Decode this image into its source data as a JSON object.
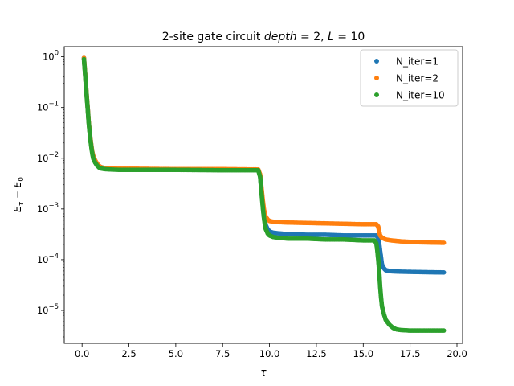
{
  "chart_data": {
    "type": "scatter",
    "title": "2-site gate circuit $depth=2, L=10$",
    "title_parts": {
      "prefix": "2-site gate circuit ",
      "depth_var": "depth",
      "eq1": " = 2, ",
      "L_var": "L",
      "eq2": " = 10"
    },
    "xlabel": "τ",
    "ylabel": "E_τ − E_0",
    "ylabel_parts": {
      "E1": "E",
      "sub1": "τ",
      "minus": " − ",
      "E2": "E",
      "sub2": "0"
    },
    "xlim": [
      -0.95,
      20.3
    ],
    "ylim_log10": [
      -5.65,
      0.2
    ],
    "yscale": "log",
    "grid": false,
    "legend_position": "top-right",
    "x_ticks": [
      {
        "value": 0.0,
        "label": "0.0"
      },
      {
        "value": 2.5,
        "label": "2.5"
      },
      {
        "value": 5.0,
        "label": "5.0"
      },
      {
        "value": 7.5,
        "label": "7.5"
      },
      {
        "value": 10.0,
        "label": "10.0"
      },
      {
        "value": 12.5,
        "label": "12.5"
      },
      {
        "value": 15.0,
        "label": "15.0"
      },
      {
        "value": 17.5,
        "label": "17.5"
      },
      {
        "value": 20.0,
        "label": "20.0"
      }
    ],
    "y_ticks": [
      {
        "exp": 0,
        "base": "10",
        "sup": "0"
      },
      {
        "exp": -1,
        "base": "10",
        "sup": "−1"
      },
      {
        "exp": -2,
        "base": "10",
        "sup": "−2"
      },
      {
        "exp": -3,
        "base": "10",
        "sup": "−3"
      },
      {
        "exp": -4,
        "base": "10",
        "sup": "−4"
      },
      {
        "exp": -5,
        "base": "10",
        "sup": "−5"
      }
    ],
    "series": [
      {
        "name": "N_iter=1",
        "color": "#1f77b4",
        "points": [
          [
            0.1,
            0.95
          ],
          [
            0.15,
            0.55
          ],
          [
            0.2,
            0.3
          ],
          [
            0.25,
            0.17
          ],
          [
            0.3,
            0.1
          ],
          [
            0.35,
            0.055
          ],
          [
            0.4,
            0.035
          ],
          [
            0.45,
            0.024
          ],
          [
            0.5,
            0.017
          ],
          [
            0.55,
            0.013
          ],
          [
            0.6,
            0.011
          ],
          [
            0.7,
            0.009
          ],
          [
            0.8,
            0.0078
          ],
          [
            0.9,
            0.0071
          ],
          [
            1.0,
            0.0067
          ],
          [
            1.2,
            0.0064
          ],
          [
            1.5,
            0.0062
          ],
          [
            2.0,
            0.0061
          ],
          [
            3.0,
            0.006
          ],
          [
            5.0,
            0.006
          ],
          [
            7.5,
            0.0059
          ],
          [
            9.4,
            0.0059
          ],
          [
            9.5,
            0.0045
          ],
          [
            9.55,
            0.0028
          ],
          [
            9.6,
            0.0018
          ],
          [
            9.65,
            0.0012
          ],
          [
            9.7,
            0.0008
          ],
          [
            9.75,
            0.0006
          ],
          [
            9.8,
            0.00048
          ],
          [
            9.9,
            0.0004
          ],
          [
            10.0,
            0.00036
          ],
          [
            10.2,
            0.00034
          ],
          [
            10.5,
            0.00033
          ],
          [
            11.0,
            0.00032
          ],
          [
            12.0,
            0.00031
          ],
          [
            13.0,
            0.00031
          ],
          [
            14.0,
            0.0003
          ],
          [
            15.0,
            0.0003
          ],
          [
            15.7,
            0.0003
          ],
          [
            15.8,
            0.00027
          ],
          [
            15.85,
            0.00021
          ],
          [
            15.9,
            0.00015
          ],
          [
            15.95,
            0.00011
          ],
          [
            16.0,
            8e-05
          ],
          [
            16.1,
            6.8e-05
          ],
          [
            16.2,
            6.2e-05
          ],
          [
            16.5,
            5.9e-05
          ],
          [
            17.0,
            5.8e-05
          ],
          [
            18.0,
            5.7e-05
          ],
          [
            19.3,
            5.6e-05
          ]
        ]
      },
      {
        "name": "N_iter=2",
        "color": "#ff7f0e",
        "points": [
          [
            0.1,
            0.95
          ],
          [
            0.15,
            0.55
          ],
          [
            0.2,
            0.3
          ],
          [
            0.25,
            0.17
          ],
          [
            0.3,
            0.1
          ],
          [
            0.35,
            0.055
          ],
          [
            0.4,
            0.035
          ],
          [
            0.45,
            0.024
          ],
          [
            0.5,
            0.017
          ],
          [
            0.55,
            0.013
          ],
          [
            0.6,
            0.011
          ],
          [
            0.7,
            0.009
          ],
          [
            0.8,
            0.0078
          ],
          [
            0.9,
            0.0071
          ],
          [
            1.0,
            0.0067
          ],
          [
            1.2,
            0.0064
          ],
          [
            1.5,
            0.0063
          ],
          [
            2.0,
            0.0062
          ],
          [
            3.0,
            0.0062
          ],
          [
            5.0,
            0.0061
          ],
          [
            7.5,
            0.0061
          ],
          [
            9.4,
            0.006
          ],
          [
            9.5,
            0.0048
          ],
          [
            9.55,
            0.0032
          ],
          [
            9.6,
            0.0021
          ],
          [
            9.65,
            0.0014
          ],
          [
            9.7,
            0.001
          ],
          [
            9.75,
            0.0008
          ],
          [
            9.8,
            0.0007
          ],
          [
            9.9,
            0.00062
          ],
          [
            10.0,
            0.00058
          ],
          [
            10.2,
            0.00056
          ],
          [
            10.5,
            0.00055
          ],
          [
            11.0,
            0.00054
          ],
          [
            12.0,
            0.00053
          ],
          [
            13.0,
            0.00052
          ],
          [
            14.0,
            0.00051
          ],
          [
            15.0,
            0.0005
          ],
          [
            15.7,
            0.0005
          ],
          [
            15.8,
            0.00045
          ],
          [
            15.85,
            0.00036
          ],
          [
            15.9,
            0.0003
          ],
          [
            16.0,
            0.00027
          ],
          [
            16.2,
            0.00025
          ],
          [
            16.5,
            0.00024
          ],
          [
            17.0,
            0.00023
          ],
          [
            18.0,
            0.00022
          ],
          [
            19.3,
            0.000215
          ]
        ]
      },
      {
        "name": "N_iter=10",
        "color": "#2ca02c",
        "points": [
          [
            0.1,
            0.9
          ],
          [
            0.15,
            0.52
          ],
          [
            0.2,
            0.29
          ],
          [
            0.25,
            0.16
          ],
          [
            0.3,
            0.095
          ],
          [
            0.35,
            0.052
          ],
          [
            0.4,
            0.033
          ],
          [
            0.45,
            0.022
          ],
          [
            0.5,
            0.016
          ],
          [
            0.55,
            0.012
          ],
          [
            0.6,
            0.0098
          ],
          [
            0.7,
            0.0082
          ],
          [
            0.8,
            0.0072
          ],
          [
            0.9,
            0.0066
          ],
          [
            1.0,
            0.0063
          ],
          [
            1.2,
            0.0061
          ],
          [
            1.5,
            0.006
          ],
          [
            2.0,
            0.0059
          ],
          [
            3.0,
            0.0059
          ],
          [
            5.0,
            0.0059
          ],
          [
            7.5,
            0.0058
          ],
          [
            9.4,
            0.0058
          ],
          [
            9.5,
            0.0043
          ],
          [
            9.55,
            0.0026
          ],
          [
            9.6,
            0.0016
          ],
          [
            9.65,
            0.001
          ],
          [
            9.7,
            0.00068
          ],
          [
            9.75,
            0.0005
          ],
          [
            9.8,
            0.0004
          ],
          [
            9.9,
            0.00033
          ],
          [
            10.0,
            0.0003
          ],
          [
            10.2,
            0.00028
          ],
          [
            10.5,
            0.00027
          ],
          [
            11.0,
            0.00026
          ],
          [
            12.0,
            0.00026
          ],
          [
            13.0,
            0.00025
          ],
          [
            14.0,
            0.00025
          ],
          [
            15.0,
            0.00024
          ],
          [
            15.6,
            0.00024
          ],
          [
            15.7,
            0.00021
          ],
          [
            15.75,
            0.00015
          ],
          [
            15.8,
            0.0001
          ],
          [
            15.85,
            6e-05
          ],
          [
            15.9,
            3e-05
          ],
          [
            15.95,
            1.8e-05
          ],
          [
            16.0,
            1.2e-05
          ],
          [
            16.1,
            8.5e-06
          ],
          [
            16.2,
            6.5e-06
          ],
          [
            16.4,
            5.2e-06
          ],
          [
            16.6,
            4.5e-06
          ],
          [
            16.8,
            4.2e-06
          ],
          [
            17.0,
            4.1e-06
          ],
          [
            17.5,
            4e-06
          ],
          [
            18.0,
            4e-06
          ],
          [
            19.3,
            4e-06
          ]
        ]
      }
    ]
  }
}
